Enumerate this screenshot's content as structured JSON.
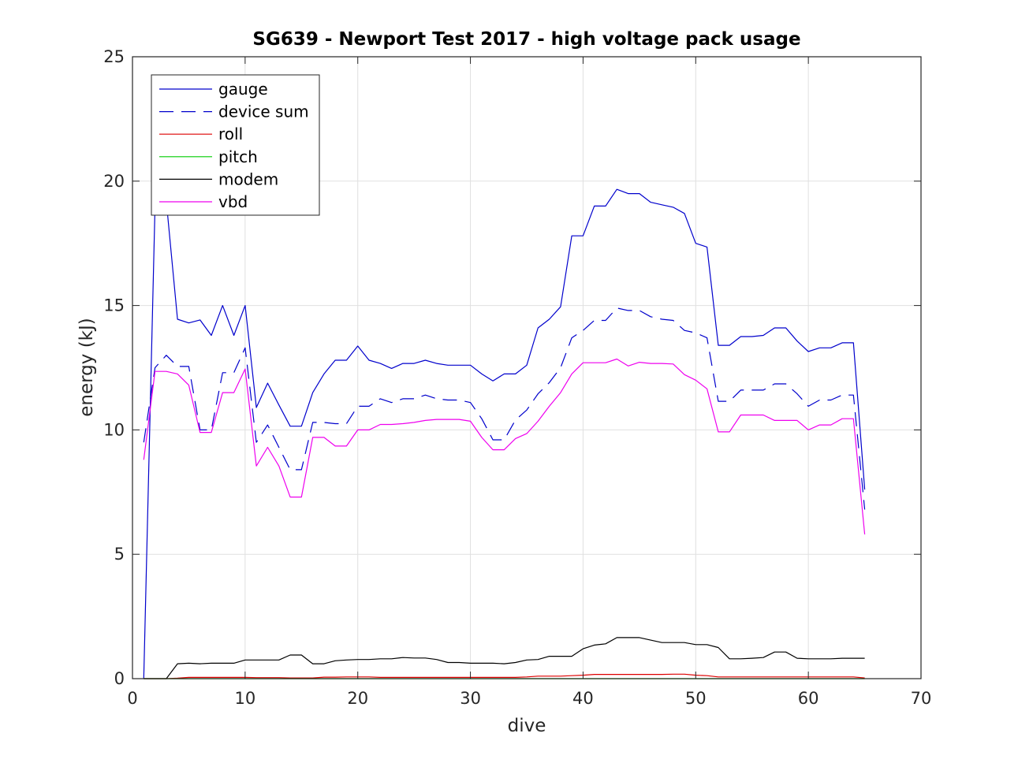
{
  "chart_data": {
    "type": "line",
    "title": "SG639 - Newport Test 2017 - high voltage pack usage",
    "xlabel": "dive",
    "ylabel": "energy (kJ)",
    "xlim": [
      0,
      70
    ],
    "ylim": [
      0,
      25
    ],
    "xticks": [
      "0",
      "10",
      "20",
      "30",
      "40",
      "50",
      "60",
      "70"
    ],
    "yticks": [
      "0",
      "5",
      "10",
      "15",
      "20",
      "25"
    ],
    "grid": true,
    "legend_position": "top-left",
    "x": [
      1,
      2,
      3,
      4,
      5,
      6,
      7,
      8,
      9,
      10,
      11,
      12,
      13,
      14,
      15,
      16,
      17,
      18,
      19,
      20,
      21,
      22,
      23,
      24,
      25,
      26,
      27,
      28,
      29,
      30,
      31,
      32,
      33,
      34,
      35,
      36,
      37,
      38,
      39,
      40,
      41,
      42,
      43,
      44,
      45,
      46,
      47,
      48,
      49,
      50,
      51,
      52,
      53,
      54,
      55,
      56,
      57,
      58,
      59,
      60,
      61,
      62,
      63,
      64,
      65
    ],
    "series": [
      {
        "name": "gauge",
        "color": "#0000cc",
        "dash": "solid",
        "values": [
          0,
          19.0,
          19.2,
          14.45,
          14.3,
          14.42,
          13.8,
          15.0,
          13.8,
          15.0,
          10.9,
          11.88,
          11.0,
          10.15,
          10.15,
          11.5,
          12.25,
          12.8,
          12.8,
          13.37,
          12.8,
          12.67,
          12.47,
          12.67,
          12.67,
          12.8,
          12.67,
          12.6,
          12.6,
          12.6,
          12.25,
          11.97,
          12.25,
          12.25,
          12.6,
          14.1,
          14.45,
          14.95,
          17.8,
          17.8,
          19.0,
          19.0,
          19.67,
          19.5,
          19.5,
          19.15,
          19.05,
          18.95,
          18.7,
          17.5,
          17.35,
          13.4,
          13.4,
          13.75,
          13.75,
          13.8,
          14.1,
          14.1,
          13.57,
          13.15,
          13.3,
          13.3,
          13.5,
          13.5,
          7.6
        ]
      },
      {
        "name": "device sum",
        "color": "#0000cc",
        "dash": "dashed",
        "values": [
          9.5,
          12.5,
          13.0,
          12.55,
          12.55,
          10.0,
          10.0,
          12.3,
          12.3,
          13.3,
          9.5,
          10.2,
          9.3,
          8.4,
          8.4,
          10.3,
          10.3,
          10.25,
          10.25,
          10.95,
          10.95,
          11.25,
          11.1,
          11.25,
          11.25,
          11.4,
          11.25,
          11.2,
          11.2,
          11.1,
          10.45,
          9.6,
          9.6,
          10.4,
          10.8,
          11.45,
          11.9,
          12.5,
          13.7,
          14.0,
          14.4,
          14.4,
          14.9,
          14.8,
          14.8,
          14.55,
          14.45,
          14.4,
          14.0,
          13.9,
          13.7,
          11.15,
          11.15,
          11.6,
          11.6,
          11.6,
          11.85,
          11.85,
          11.45,
          10.95,
          11.2,
          11.2,
          11.4,
          11.4,
          6.8
        ]
      },
      {
        "name": "roll",
        "color": "#dd0000",
        "dash": "solid",
        "values": [
          0,
          0,
          0,
          0.02,
          0.05,
          0.05,
          0.05,
          0.05,
          0.05,
          0.05,
          0.04,
          0.04,
          0.04,
          0.03,
          0.03,
          0.03,
          0.06,
          0.06,
          0.07,
          0.07,
          0.07,
          0.05,
          0.05,
          0.05,
          0.05,
          0.05,
          0.05,
          0.05,
          0.05,
          0.05,
          0.05,
          0.05,
          0.05,
          0.05,
          0.07,
          0.1,
          0.1,
          0.1,
          0.12,
          0.14,
          0.17,
          0.17,
          0.17,
          0.17,
          0.17,
          0.17,
          0.17,
          0.18,
          0.18,
          0.14,
          0.12,
          0.07,
          0.07,
          0.07,
          0.07,
          0.07,
          0.07,
          0.07,
          0.07,
          0.07,
          0.07,
          0.07,
          0.07,
          0.07,
          0.03
        ]
      },
      {
        "name": "pitch",
        "color": "#00cc00",
        "dash": "solid",
        "values": [
          0,
          0,
          0,
          0,
          0,
          0,
          0,
          0,
          0,
          0,
          0,
          0,
          0,
          0,
          0,
          0,
          0,
          0,
          0,
          0,
          0,
          0,
          0,
          0,
          0,
          0,
          0,
          0,
          0,
          0,
          0,
          0,
          0,
          0,
          0,
          0,
          0,
          0,
          0,
          0,
          0,
          0,
          0,
          0,
          0,
          0,
          0,
          0,
          0,
          0,
          0,
          0,
          0,
          0,
          0,
          0,
          0,
          0,
          0,
          0,
          0,
          0,
          0,
          0,
          0
        ]
      },
      {
        "name": "modem",
        "color": "#000000",
        "dash": "solid",
        "values": [
          0,
          0,
          0,
          0.6,
          0.62,
          0.6,
          0.62,
          0.62,
          0.62,
          0.75,
          0.75,
          0.75,
          0.75,
          0.95,
          0.95,
          0.6,
          0.6,
          0.72,
          0.75,
          0.77,
          0.77,
          0.8,
          0.8,
          0.85,
          0.83,
          0.83,
          0.77,
          0.65,
          0.65,
          0.62,
          0.62,
          0.62,
          0.6,
          0.65,
          0.75,
          0.77,
          0.9,
          0.9,
          0.9,
          1.2,
          1.35,
          1.4,
          1.65,
          1.65,
          1.65,
          1.55,
          1.45,
          1.45,
          1.45,
          1.37,
          1.37,
          1.25,
          0.8,
          0.8,
          0.82,
          0.85,
          1.07,
          1.07,
          0.82,
          0.8,
          0.8,
          0.8,
          0.82,
          0.82,
          0.82
        ]
      },
      {
        "name": "vbd",
        "color": "#ee00ee",
        "dash": "solid",
        "values": [
          8.8,
          12.35,
          12.35,
          12.25,
          11.8,
          9.9,
          9.9,
          11.5,
          11.5,
          12.45,
          8.55,
          9.3,
          8.55,
          7.3,
          7.3,
          9.7,
          9.7,
          9.35,
          9.35,
          10.0,
          10.0,
          10.22,
          10.22,
          10.25,
          10.3,
          10.38,
          10.42,
          10.42,
          10.42,
          10.35,
          9.7,
          9.2,
          9.2,
          9.65,
          9.85,
          10.35,
          10.95,
          11.5,
          12.25,
          12.7,
          12.7,
          12.7,
          12.85,
          12.57,
          12.72,
          12.67,
          12.67,
          12.65,
          12.22,
          12.0,
          11.65,
          9.92,
          9.92,
          10.6,
          10.6,
          10.6,
          10.38,
          10.38,
          10.38,
          10.0,
          10.2,
          10.2,
          10.45,
          10.45,
          5.8
        ]
      }
    ]
  }
}
